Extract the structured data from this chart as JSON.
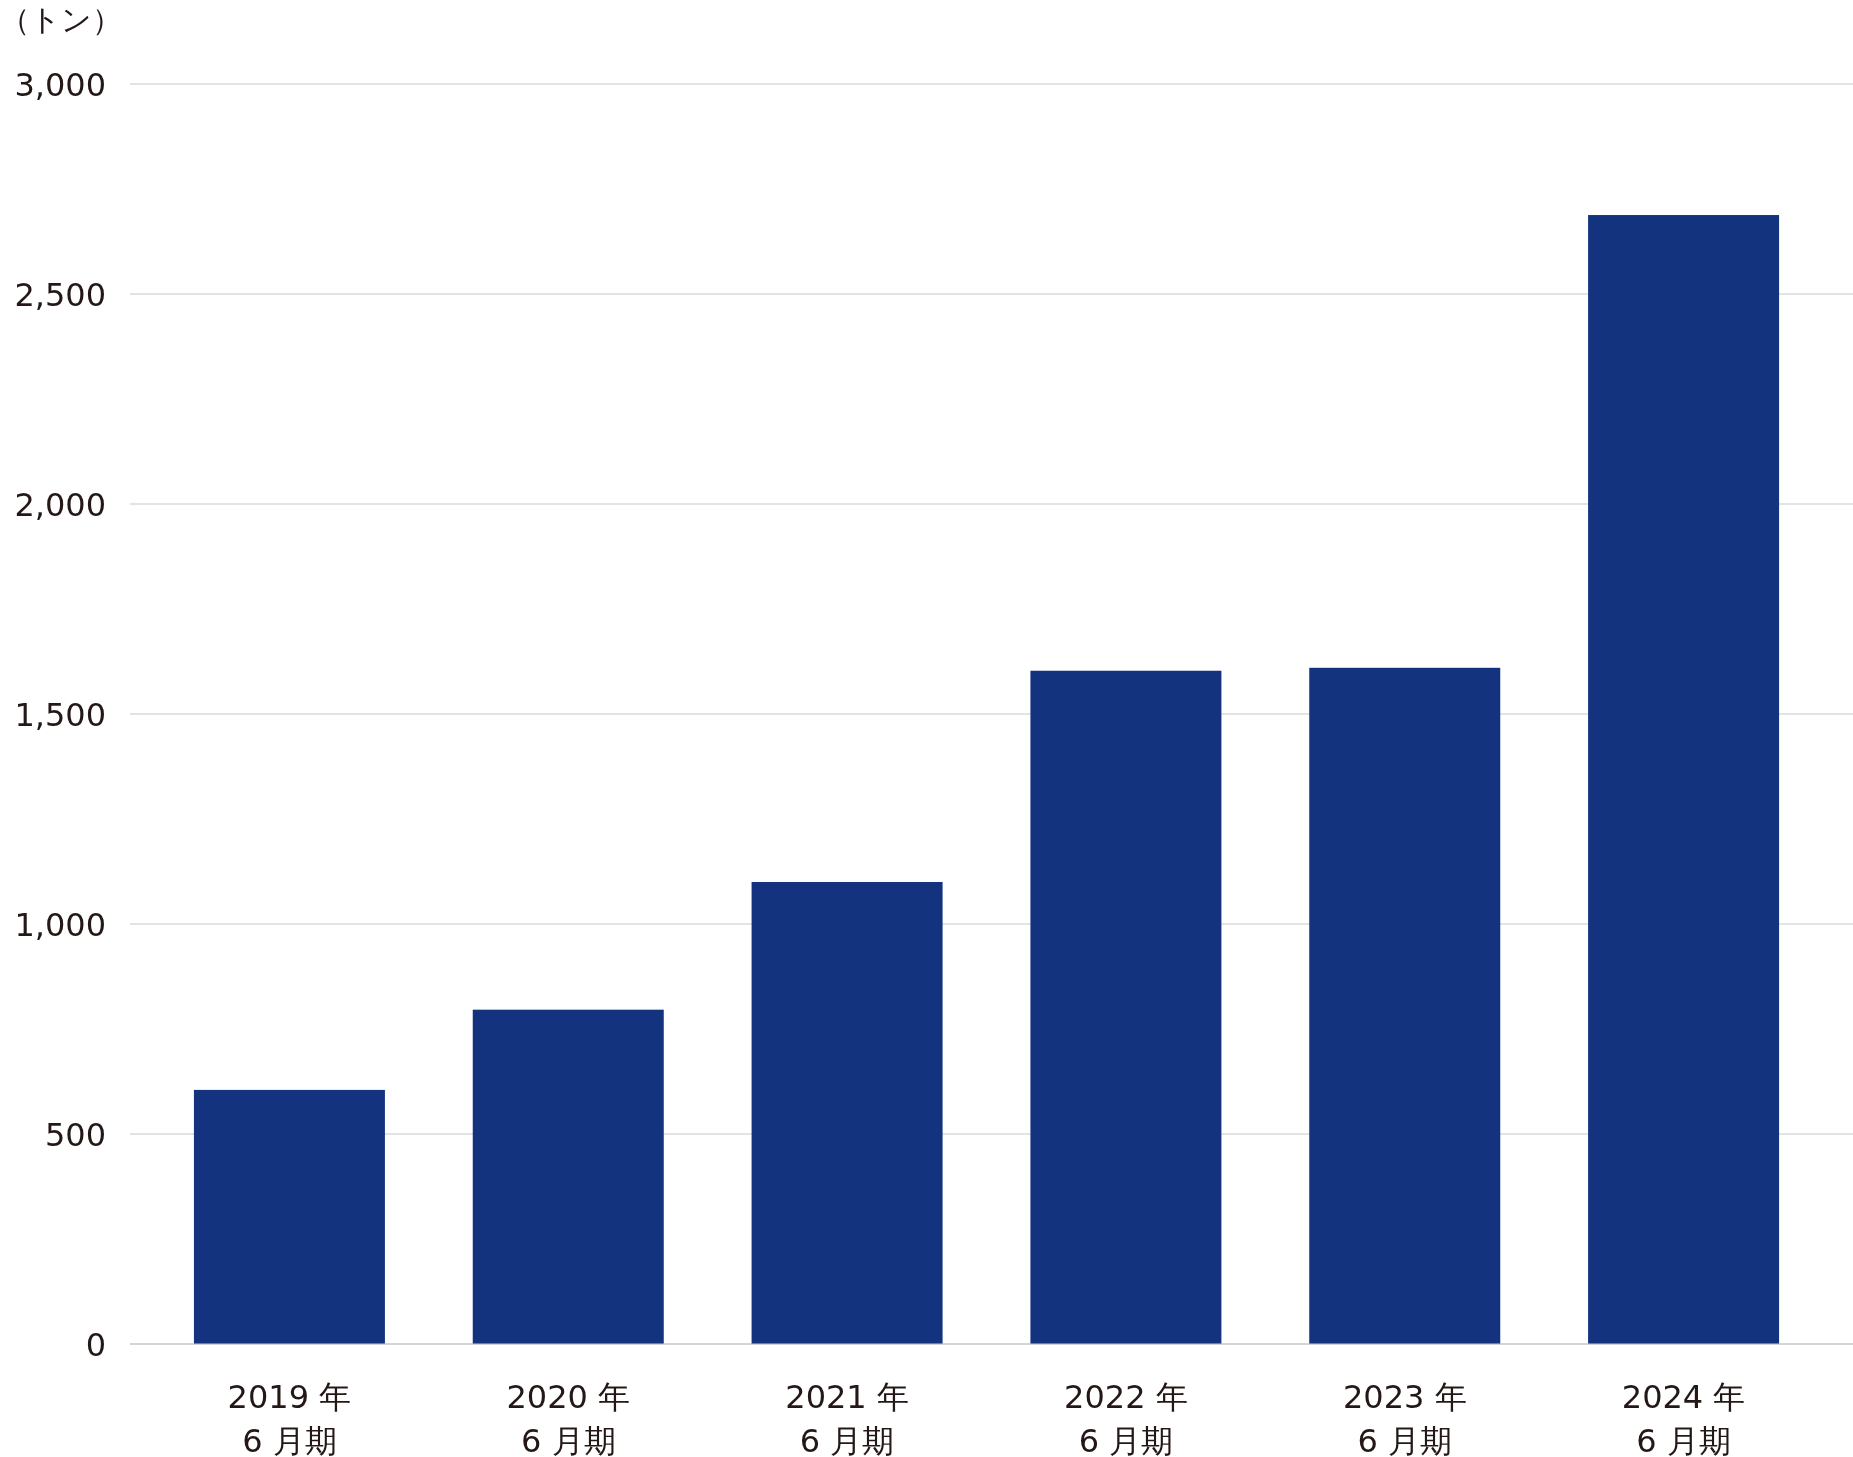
{
  "chart_data": {
    "type": "bar",
    "ylabel": "（トン）",
    "categories": [
      "2019 年\n6 月期",
      "2020 年\n6 月期",
      "2021 年\n6 月期",
      "2022 年\n6 月期",
      "2023 年\n6 月期",
      "2024 年\n6 月期"
    ],
    "values": [
      605,
      796,
      1100,
      1603,
      1610,
      2688
    ],
    "color": "#13337f",
    "ylim": [
      0,
      3000
    ],
    "yticks": [
      0,
      500,
      {
        "value": 1000,
        "label": "1,000"
      },
      {
        "value": 1500,
        "label": "1,500"
      },
      {
        "value": 2000,
        "label": "2,000"
      },
      {
        "value": 2500,
        "label": "2,500"
      },
      {
        "value": 3000,
        "label": "3,000"
      }
    ],
    "grid": "y"
  }
}
